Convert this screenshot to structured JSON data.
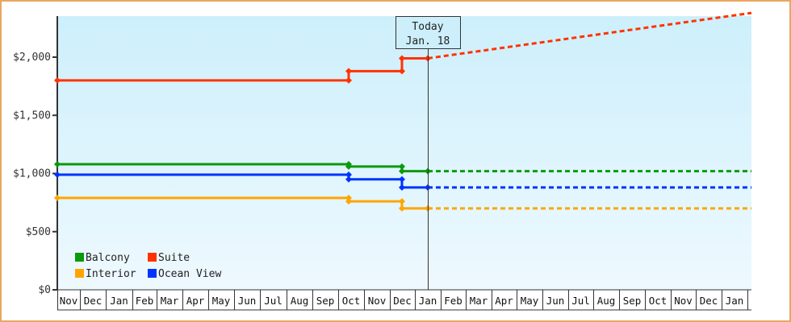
{
  "chart_data": {
    "type": "line",
    "title": "",
    "xlabel": "",
    "ylabel": "",
    "ylim": [
      0,
      2380
    ],
    "y_ticks": [
      "$0",
      "$500",
      "$1,000",
      "$1,500",
      "$2,000"
    ],
    "y_tick_values": [
      0,
      500,
      1000,
      1500,
      2000
    ],
    "x_ticks": [
      "Nov",
      "Dec",
      "Jan",
      "Feb",
      "Mar",
      "Apr",
      "May",
      "Jun",
      "Jul",
      "Aug",
      "Sep",
      "Oct",
      "Nov",
      "Dec",
      "Jan",
      "Feb",
      "Mar",
      "Apr",
      "May",
      "Jun",
      "Jul",
      "Aug",
      "Sep",
      "Oct",
      "Nov",
      "Dec",
      "Jan"
    ],
    "today_marker": {
      "line1": "Today",
      "line2": "Jan. 18"
    },
    "legend_position": "bottom-left inside plot",
    "grid": false,
    "series": [
      {
        "name": "Balcony",
        "color": "#0a9a0a",
        "points": [
          {
            "x": "Nov",
            "y": 1080
          },
          {
            "x": "Oct",
            "y": 1080
          },
          {
            "x": "Oct",
            "y": 1060
          },
          {
            "x": "Dec",
            "y": 1060
          },
          {
            "x": "Dec",
            "y": 1020
          },
          {
            "x": "Jan 18",
            "y": 1020
          }
        ],
        "projection": [
          {
            "x": "Jan 18",
            "y": 1020
          },
          {
            "x": "Jan (next)",
            "y": 1020
          }
        ]
      },
      {
        "name": "Suite",
        "color": "#ff3300",
        "points": [
          {
            "x": "Nov",
            "y": 1800
          },
          {
            "x": "Oct",
            "y": 1800
          },
          {
            "x": "Oct",
            "y": 1880
          },
          {
            "x": "Dec",
            "y": 1880
          },
          {
            "x": "Dec",
            "y": 1990
          },
          {
            "x": "Jan 18",
            "y": 1990
          }
        ],
        "projection": [
          {
            "x": "Jan 18",
            "y": 1990
          },
          {
            "x": "Jan (next)",
            "y": 2380
          }
        ]
      },
      {
        "name": "Interior",
        "color": "#ffa500",
        "points": [
          {
            "x": "Nov",
            "y": 790
          },
          {
            "x": "Oct",
            "y": 790
          },
          {
            "x": "Oct",
            "y": 760
          },
          {
            "x": "Dec",
            "y": 760
          },
          {
            "x": "Dec",
            "y": 700
          },
          {
            "x": "Jan 18",
            "y": 700
          }
        ],
        "projection": [
          {
            "x": "Jan 18",
            "y": 700
          },
          {
            "x": "Jan (next)",
            "y": 700
          }
        ]
      },
      {
        "name": "Ocean View",
        "color": "#0033ff",
        "points": [
          {
            "x": "Nov",
            "y": 990
          },
          {
            "x": "Oct",
            "y": 990
          },
          {
            "x": "Oct",
            "y": 950
          },
          {
            "x": "Dec",
            "y": 950
          },
          {
            "x": "Dec",
            "y": 880
          },
          {
            "x": "Jan 18",
            "y": 880
          }
        ],
        "projection": [
          {
            "x": "Jan 18",
            "y": 880
          },
          {
            "x": "Jan (next)",
            "y": 880
          }
        ]
      }
    ]
  },
  "legend": [
    {
      "label": "Balcony",
      "color": "#0a9a0a"
    },
    {
      "label": "Suite",
      "color": "#ff3300"
    },
    {
      "label": "Interior",
      "color": "#ffa500"
    },
    {
      "label": "Ocean View",
      "color": "#0033ff"
    }
  ]
}
